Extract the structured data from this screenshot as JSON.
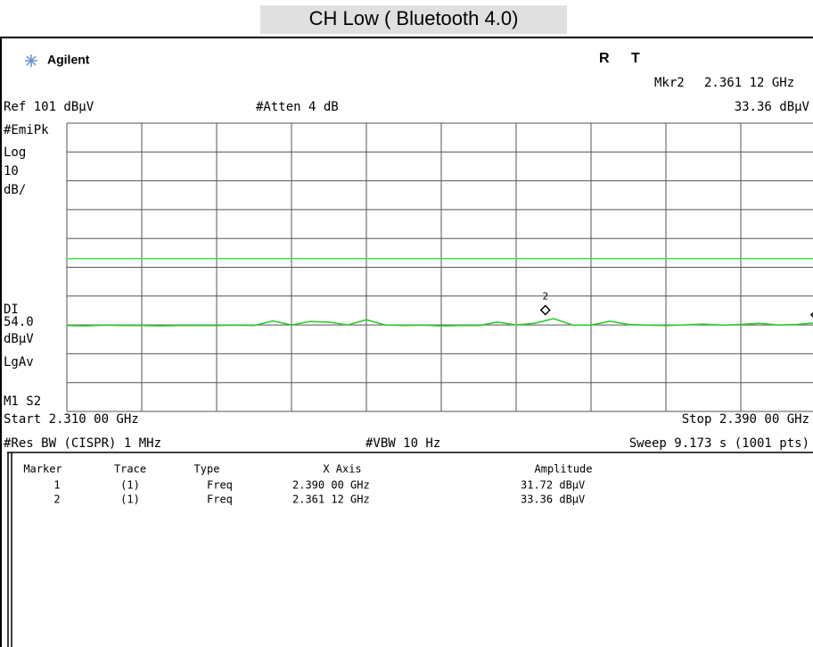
{
  "header": {
    "title": "CH Low ( Bluetooth 4.0)",
    "brand": "Agilent",
    "status": [
      "R",
      "T"
    ],
    "marker_readout": {
      "label": "Mkr2",
      "freq": "2.361 12 GHz",
      "amp": "33.36 dBµV"
    }
  },
  "settings": {
    "ref": "Ref 101 dBµV",
    "atten": "#Atten 4 dB",
    "left_labels": [
      "#EmiPk",
      "Log",
      "10",
      "dB/",
      "DI",
      "54.0",
      "dBµV",
      "LgAv",
      "M1  S2"
    ],
    "start": "Start 2.310 00 GHz",
    "stop": "Stop 2.390 00 GHz",
    "rbw": "#Res BW (CISPR) 1 MHz",
    "vbw": "#VBW 10 Hz",
    "sweep": "Sweep 9.173 s (1001 pts)"
  },
  "chart_data": {
    "type": "line",
    "xlim": [
      2.31,
      2.39
    ],
    "ylim": [
      1,
      101
    ],
    "xticks": [
      2.31,
      2.318,
      2.326,
      2.334,
      2.342,
      2.35,
      2.358,
      2.366,
      2.374,
      2.382,
      2.39
    ],
    "yticks": [
      1,
      11,
      21,
      31,
      41,
      51,
      61,
      71,
      81,
      91,
      101
    ],
    "grid": true,
    "display_line": 54,
    "display_line_color": "#44dd44",
    "x": [
      2.31,
      2.312,
      2.314,
      2.316,
      2.318,
      2.32,
      2.322,
      2.324,
      2.326,
      2.328,
      2.33,
      2.332,
      2.334,
      2.336,
      2.338,
      2.34,
      2.342,
      2.344,
      2.346,
      2.348,
      2.35,
      2.352,
      2.354,
      2.356,
      2.358,
      2.36,
      2.362,
      2.364,
      2.366,
      2.368,
      2.37,
      2.372,
      2.374,
      2.376,
      2.378,
      2.38,
      2.382,
      2.384,
      2.386,
      2.388,
      2.39
    ],
    "series": [
      {
        "color": "#22cc22",
        "values": [
          30.8,
          30.7,
          30.9,
          30.8,
          30.8,
          30.7,
          30.8,
          30.8,
          30.8,
          30.9,
          30.8,
          32.4,
          31.0,
          32.2,
          32.0,
          31.0,
          32.8,
          31.0,
          30.8,
          30.9,
          30.7,
          30.8,
          30.8,
          32.0,
          31.0,
          31.6,
          33.2,
          31.0,
          30.9,
          32.3,
          31.2,
          30.9,
          30.8,
          31.0,
          31.3,
          30.9,
          31.2,
          31.6,
          31.0,
          31.2,
          31.7
        ]
      }
    ],
    "markers": [
      {
        "label": "1",
        "x": 2.39,
        "y": 31.72
      },
      {
        "label": "2",
        "x": 2.36112,
        "y": 33.36
      }
    ]
  },
  "table": {
    "headers": [
      "Marker",
      "Trace",
      "Type",
      "X Axis",
      "Amplitude"
    ],
    "rows": [
      [
        "1",
        "(1)",
        "Freq",
        "2.390 00 GHz",
        "31.72 dBµV"
      ],
      [
        "2",
        "(1)",
        "Freq",
        "2.361 12 GHz",
        "33.36 dBµV"
      ]
    ]
  }
}
